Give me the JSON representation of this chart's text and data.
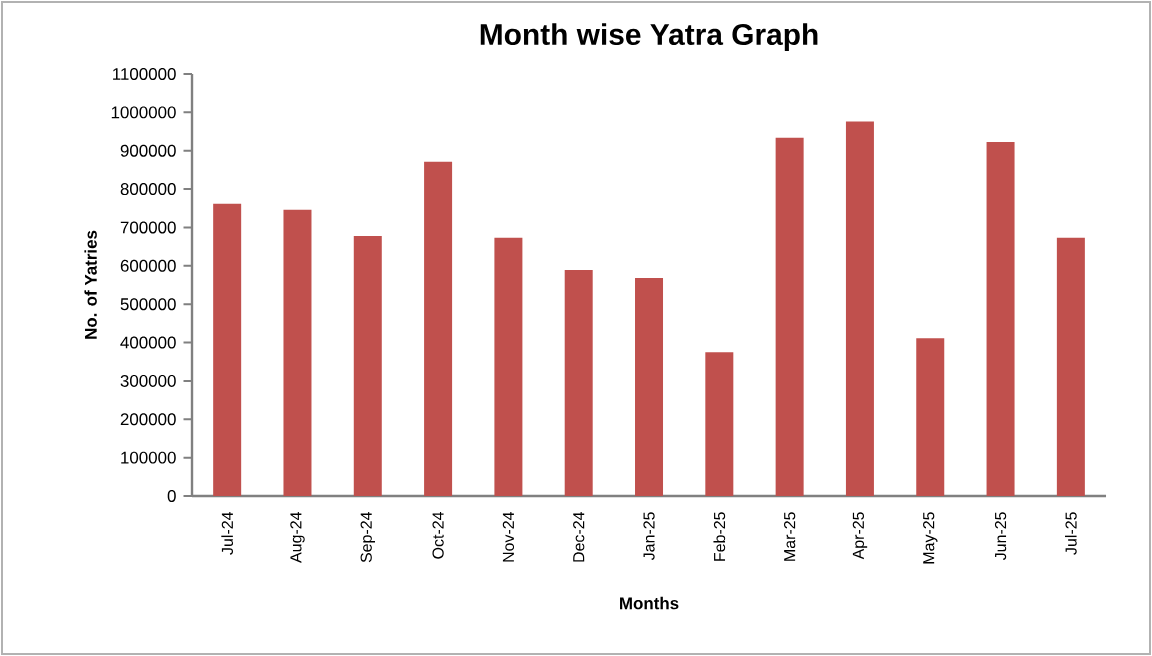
{
  "chart_data": {
    "type": "bar",
    "title": "Month wise Yatra Graph",
    "xlabel": "Months",
    "ylabel": "No. of Yatries",
    "categories": [
      "Jul-24",
      "Aug-24",
      "Sep-24",
      "Oct-24",
      "Nov-24",
      "Dec-24",
      "Jan-25",
      "Feb-25",
      "Mar-25",
      "Apr-25",
      "May-25",
      "Jun-25",
      "Jul-25"
    ],
    "values": [
      762000,
      746000,
      678000,
      871000,
      673000,
      589000,
      568000,
      375000,
      934000,
      976000,
      411000,
      923000,
      673000
    ],
    "color": "#c0504d",
    "ylim": [
      0,
      1100000
    ],
    "yticks": [
      0,
      100000,
      200000,
      300000,
      400000,
      500000,
      600000,
      700000,
      800000,
      900000,
      1000000,
      1100000
    ],
    "grid": false
  }
}
